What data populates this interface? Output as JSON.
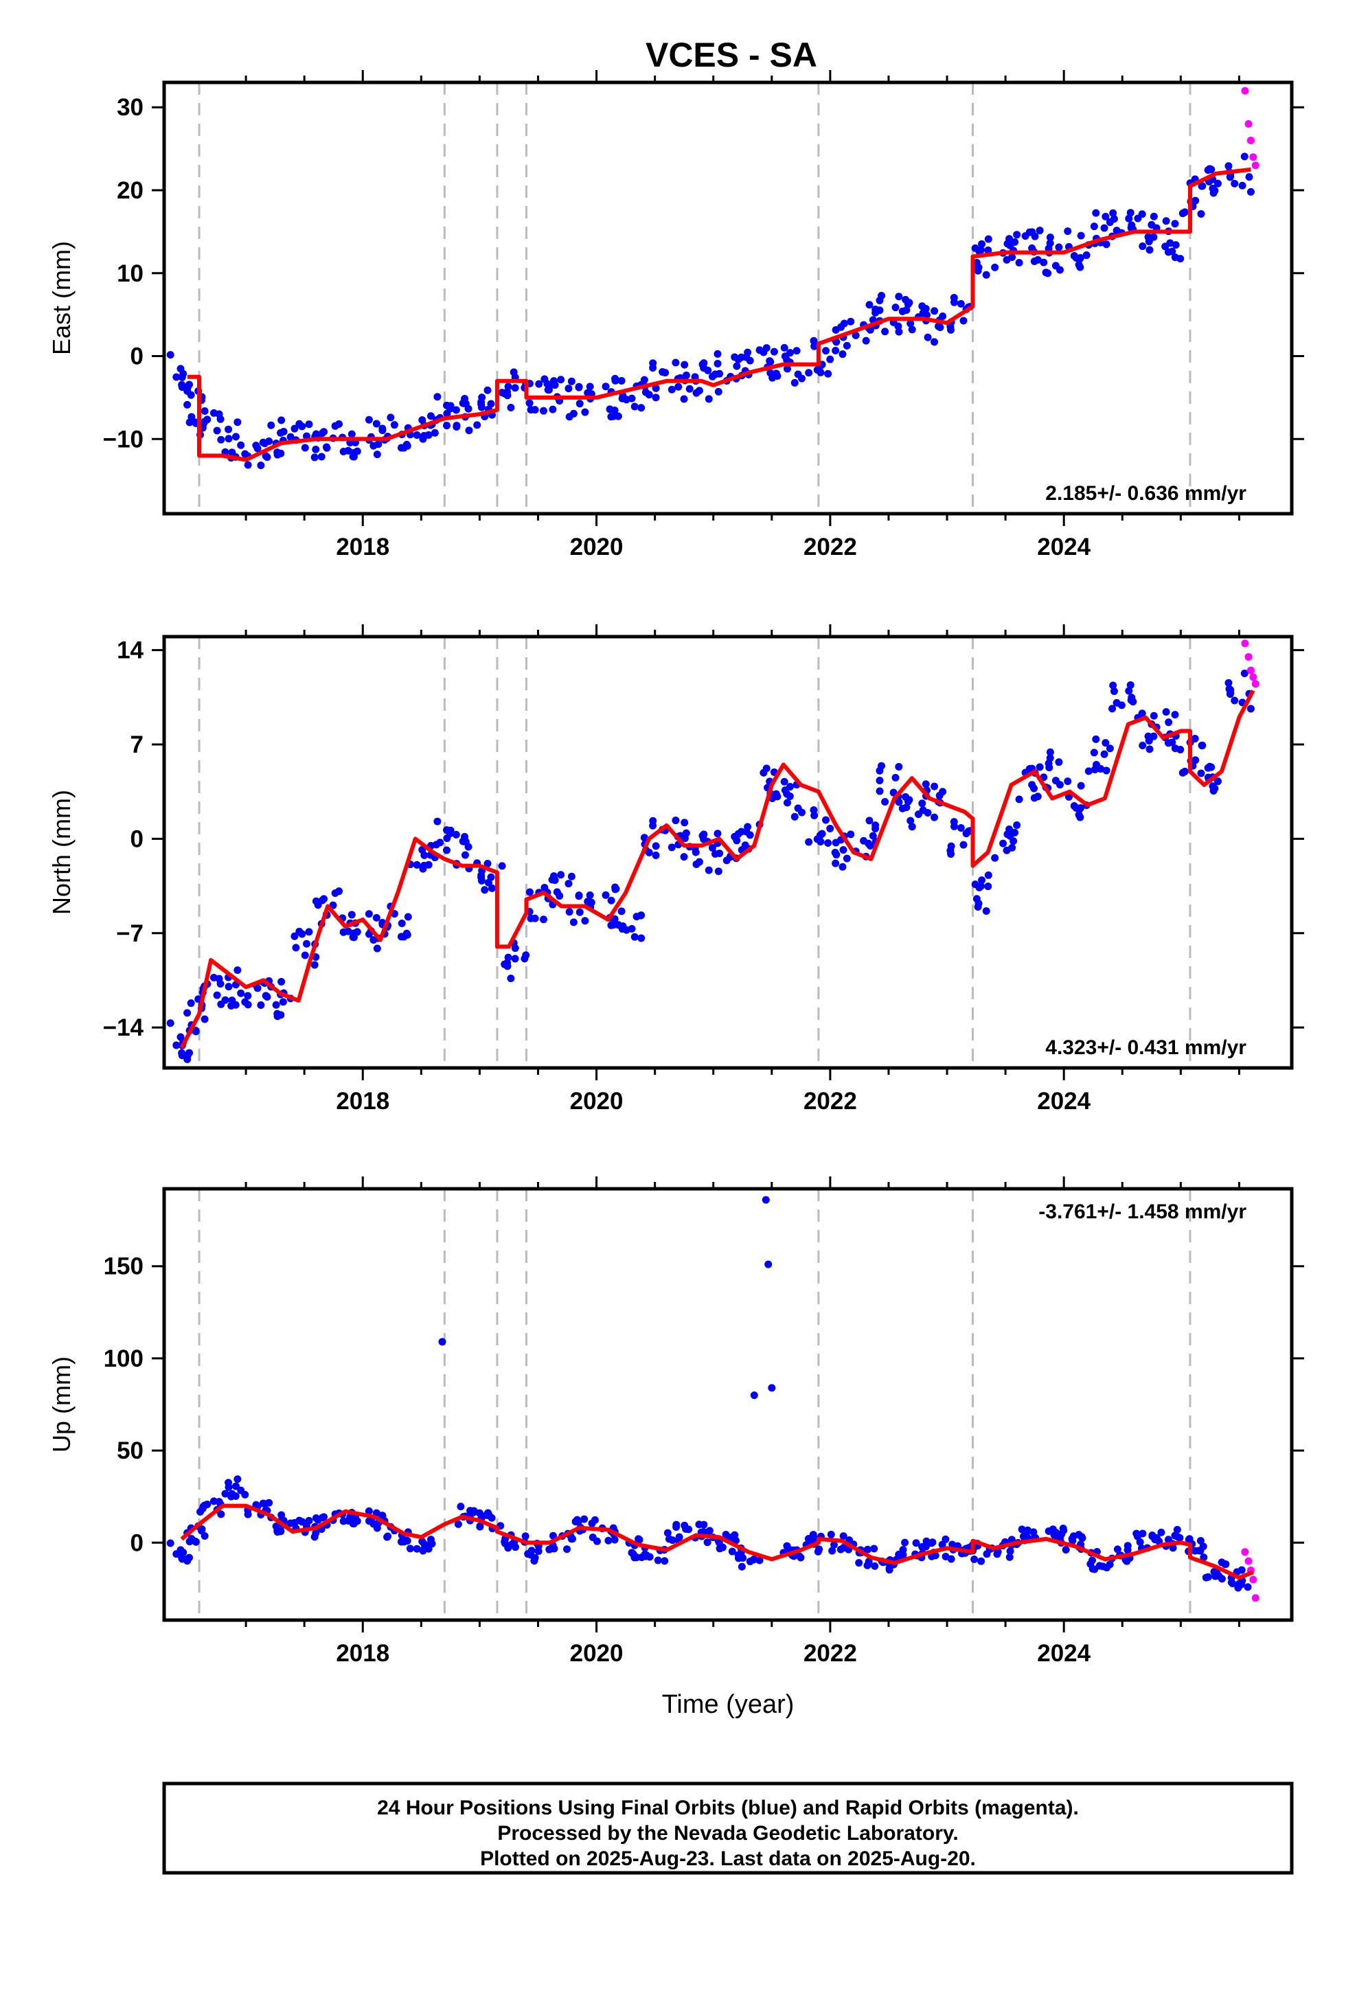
{
  "title": "VCES - SA",
  "footer_lines": [
    "24 Hour Positions Using Final Orbits (blue) and Rapid Orbits (magenta).",
    "Processed by the Nevada Geodetic Laboratory.",
    "Plotted on 2025-Aug-23. Last data on 2025-Aug-20."
  ],
  "colors": {
    "final_orbits": "#0000ff",
    "rapid_orbits": "#ff00ff",
    "model": "#ff0000",
    "steps": "#bbbbbb"
  },
  "chart_data": [
    {
      "type": "scatter",
      "ylabel": "East (mm)",
      "xlabel": "",
      "xlim": [
        2016.3,
        2025.95
      ],
      "ylim": [
        -19,
        33
      ],
      "yticks": [
        -10,
        0,
        10,
        20,
        30
      ],
      "xticks": [
        2018,
        2020,
        2022,
        2024
      ],
      "rate_text": "2.185+/- 0.636 mm/yr",
      "rate_position": "bottom-right",
      "grid": false,
      "step_epochs": [
        2016.6,
        2018.7,
        2019.15,
        2019.4,
        2021.9,
        2023.22,
        2025.08
      ],
      "series": [
        {
          "name": "Final Orbits (blue)",
          "x": [
            2016.45,
            2016.55,
            2016.7,
            2016.9,
            2017.1,
            2017.3,
            2017.5,
            2017.7,
            2017.9,
            2018.1,
            2018.3,
            2018.5,
            2018.7,
            2018.9,
            2019.1,
            2019.3,
            2019.5,
            2019.7,
            2019.9,
            2020.1,
            2020.3,
            2020.5,
            2020.7,
            2020.9,
            2021.1,
            2021.3,
            2021.5,
            2021.7,
            2021.9,
            2022.1,
            2022.3,
            2022.5,
            2022.7,
            2022.9,
            2023.1,
            2023.3,
            2023.5,
            2023.7,
            2023.9,
            2024.1,
            2024.3,
            2024.5,
            2024.7,
            2024.9,
            2025.1,
            2025.3,
            2025.5
          ],
          "y": [
            -2,
            -6,
            -8,
            -10,
            -11,
            -10,
            -10,
            -10,
            -10,
            -10,
            -9,
            -8,
            -7,
            -7,
            -6,
            -4,
            -5,
            -5,
            -5,
            -5,
            -4,
            -3,
            -3,
            -3,
            -2,
            -1,
            -1,
            -1,
            0,
            2,
            4,
            5,
            5,
            4,
            5,
            12,
            13,
            13,
            12,
            13,
            15,
            15,
            15,
            14,
            19,
            22,
            22
          ]
        },
        {
          "name": "Rapid Orbits (magenta)",
          "x": [
            2025.55,
            2025.58,
            2025.6,
            2025.62,
            2025.64
          ],
          "y": [
            32,
            28,
            26,
            24,
            23
          ]
        },
        {
          "name": "model",
          "x": [
            2016.5,
            2016.6,
            2016.6,
            2016.8,
            2017.0,
            2017.3,
            2017.6,
            2017.9,
            2018.2,
            2018.5,
            2018.7,
            2018.7,
            2019.0,
            2019.15,
            2019.15,
            2019.4,
            2019.4,
            2019.7,
            2020.0,
            2020.3,
            2020.6,
            2020.9,
            2021.0,
            2021.3,
            2021.6,
            2021.9,
            2021.9,
            2022.2,
            2022.5,
            2022.8,
            2023.0,
            2023.22,
            2023.22,
            2023.5,
            2023.8,
            2024.0,
            2024.3,
            2024.6,
            2024.9,
            2025.08,
            2025.08,
            2025.3,
            2025.6
          ],
          "y": [
            -2.5,
            -2.5,
            -12,
            -12,
            -12.5,
            -10.5,
            -10,
            -10,
            -10,
            -8.5,
            -7.5,
            -7.5,
            -7,
            -6.5,
            -3,
            -3,
            -5,
            -5,
            -5,
            -4,
            -3,
            -3,
            -3.5,
            -2,
            -1,
            -1,
            1.5,
            3,
            4.5,
            4.5,
            4,
            6,
            12,
            12.5,
            12.5,
            12.5,
            14,
            15,
            15,
            15,
            20.5,
            22,
            22.5
          ]
        }
      ]
    },
    {
      "type": "scatter",
      "ylabel": "North (mm)",
      "xlabel": "",
      "xlim": [
        2016.3,
        2025.95
      ],
      "ylim": [
        -17,
        15
      ],
      "yticks": [
        -14,
        -7,
        0,
        7,
        14
      ],
      "xticks": [
        2018,
        2020,
        2022,
        2024
      ],
      "rate_text": "4.323+/- 0.431 mm/yr",
      "rate_position": "bottom-right",
      "grid": false,
      "step_epochs": [
        2016.6,
        2018.7,
        2019.15,
        2019.4,
        2021.9,
        2023.22,
        2025.08
      ],
      "series": [
        {
          "name": "Final Orbits (blue)",
          "x": [
            2016.45,
            2016.55,
            2016.7,
            2016.9,
            2017.1,
            2017.3,
            2017.5,
            2017.7,
            2017.9,
            2018.1,
            2018.3,
            2018.5,
            2018.7,
            2018.9,
            2019.1,
            2019.3,
            2019.5,
            2019.7,
            2019.9,
            2020.1,
            2020.3,
            2020.5,
            2020.7,
            2020.9,
            2021.1,
            2021.3,
            2021.5,
            2021.7,
            2021.9,
            2022.1,
            2022.3,
            2022.5,
            2022.7,
            2022.9,
            2023.1,
            2023.3,
            2023.5,
            2023.7,
            2023.9,
            2024.1,
            2024.3,
            2024.5,
            2024.7,
            2024.9,
            2025.1,
            2025.3,
            2025.5
          ],
          "y": [
            -15,
            -13,
            -11,
            -11,
            -11,
            -12,
            -8,
            -5,
            -6,
            -7,
            -6,
            -1,
            0,
            -1,
            -3,
            -9,
            -5,
            -4,
            -5,
            -5,
            -6,
            0,
            0,
            -1,
            -1,
            0,
            4,
            3,
            1,
            -1,
            0,
            4,
            2,
            3,
            0,
            -4,
            0,
            4,
            5,
            3,
            6,
            10,
            8,
            8,
            6,
            5,
            11
          ]
        },
        {
          "name": "Rapid Orbits (magenta)",
          "x": [
            2025.55,
            2025.58,
            2025.6,
            2025.62,
            2025.64
          ],
          "y": [
            14.5,
            13.5,
            12.5,
            12,
            11.5
          ]
        },
        {
          "name": "model",
          "x": [
            2016.45,
            2016.6,
            2016.7,
            2016.85,
            2017.0,
            2017.15,
            2017.3,
            2017.45,
            2017.55,
            2017.7,
            2017.85,
            2018.0,
            2018.15,
            2018.3,
            2018.45,
            2018.6,
            2018.7,
            2018.85,
            2019.0,
            2019.15,
            2019.15,
            2019.25,
            2019.4,
            2019.4,
            2019.55,
            2019.7,
            2019.9,
            2020.1,
            2020.25,
            2020.45,
            2020.6,
            2020.75,
            2020.9,
            2021.05,
            2021.2,
            2021.35,
            2021.5,
            2021.6,
            2021.75,
            2021.9,
            2021.9,
            2022.05,
            2022.2,
            2022.35,
            2022.55,
            2022.7,
            2022.85,
            2023.0,
            2023.15,
            2023.22,
            2023.22,
            2023.35,
            2023.55,
            2023.75,
            2023.9,
            2024.05,
            2024.2,
            2024.35,
            2024.55,
            2024.7,
            2024.85,
            2025.0,
            2025.08,
            2025.08,
            2025.2,
            2025.35,
            2025.5,
            2025.62
          ],
          "y": [
            -15.5,
            -13,
            -9,
            -10,
            -11,
            -10.5,
            -11.5,
            -12,
            -9,
            -5,
            -6.5,
            -6,
            -7.5,
            -4,
            0,
            -1,
            -1.5,
            -2,
            -2,
            -2.5,
            -8,
            -8,
            -5.5,
            -4.5,
            -4,
            -5,
            -5,
            -6,
            -4,
            0,
            1,
            -0.5,
            -0.5,
            0,
            -1.5,
            -0.5,
            4,
            5.5,
            4,
            3.5,
            3.5,
            1,
            -1,
            -1.5,
            3,
            4.5,
            3,
            2.5,
            2,
            1.5,
            -2,
            -1,
            4,
            5,
            3,
            3.5,
            2.5,
            3,
            8.5,
            9,
            7.5,
            8,
            8,
            5,
            4,
            5,
            9,
            11
          ]
        }
      ]
    },
    {
      "type": "scatter",
      "ylabel": "Up (mm)",
      "xlabel": "Time (year)",
      "xlim": [
        2016.3,
        2025.95
      ],
      "ylim": [
        -42,
        192
      ],
      "yticks": [
        0,
        50,
        100,
        150
      ],
      "xticks": [
        2018,
        2020,
        2022,
        2024
      ],
      "rate_text": "-3.761+/- 1.458 mm/yr",
      "rate_position": "top-right",
      "grid": false,
      "step_epochs": [
        2016.6,
        2018.7,
        2019.15,
        2019.4,
        2021.9,
        2023.22,
        2025.08
      ],
      "series": [
        {
          "name": "Final Orbits (blue)",
          "x": [
            2016.45,
            2016.55,
            2016.7,
            2016.9,
            2017.1,
            2017.3,
            2017.5,
            2017.7,
            2017.9,
            2018.1,
            2018.3,
            2018.5,
            2018.68,
            2018.9,
            2019.1,
            2019.3,
            2019.5,
            2019.7,
            2019.9,
            2020.1,
            2020.3,
            2020.5,
            2020.7,
            2020.9,
            2021.1,
            2021.3,
            2021.35,
            2021.45,
            2021.47,
            2021.5,
            2021.7,
            2021.9,
            2022.1,
            2022.3,
            2022.5,
            2022.7,
            2022.9,
            2023.1,
            2023.3,
            2023.5,
            2023.7,
            2023.9,
            2024.1,
            2024.3,
            2024.5,
            2024.7,
            2024.9,
            2025.1,
            2025.3,
            2025.5
          ],
          "y": [
            -5,
            5,
            20,
            30,
            20,
            10,
            8,
            12,
            15,
            12,
            5,
            0,
            109,
            15,
            12,
            0,
            -5,
            0,
            8,
            5,
            -3,
            -5,
            5,
            5,
            0,
            -8,
            80,
            186,
            151,
            84,
            -5,
            0,
            0,
            -8,
            -10,
            -5,
            -3,
            -5,
            -5,
            -3,
            5,
            3,
            0,
            -10,
            -5,
            0,
            2,
            -3,
            -15,
            -20
          ]
        },
        {
          "name": "Rapid Orbits (magenta)",
          "x": [
            2025.55,
            2025.58,
            2025.6,
            2025.62,
            2025.64
          ],
          "y": [
            -5,
            -10,
            -15,
            -20,
            -30
          ]
        },
        {
          "name": "model",
          "x": [
            2016.45,
            2016.6,
            2016.8,
            2017.0,
            2017.2,
            2017.4,
            2017.6,
            2017.85,
            2018.1,
            2018.35,
            2018.5,
            2018.7,
            2018.85,
            2019.0,
            2019.15,
            2019.15,
            2019.4,
            2019.4,
            2019.6,
            2019.85,
            2020.1,
            2020.35,
            2020.6,
            2020.85,
            2021.05,
            2021.3,
            2021.5,
            2021.75,
            2021.9,
            2021.9,
            2022.1,
            2022.35,
            2022.55,
            2022.8,
            2023.0,
            2023.22,
            2023.22,
            2023.4,
            2023.6,
            2023.85,
            2024.1,
            2024.35,
            2024.6,
            2024.85,
            2025.0,
            2025.08,
            2025.08,
            2025.3,
            2025.5,
            2025.62
          ],
          "y": [
            2,
            10,
            20,
            20,
            15,
            6,
            8,
            17,
            14,
            5,
            3,
            10,
            14,
            12,
            8,
            6,
            0,
            0,
            0,
            8,
            7,
            -1,
            -4,
            4,
            3,
            -5,
            -9,
            -4,
            0,
            2,
            1,
            -8,
            -11,
            -6,
            -3,
            -5,
            1,
            -3,
            0,
            2,
            -2,
            -9,
            -6,
            -1,
            0,
            -1,
            -8,
            -13,
            -19,
            -16
          ]
        }
      ]
    }
  ]
}
